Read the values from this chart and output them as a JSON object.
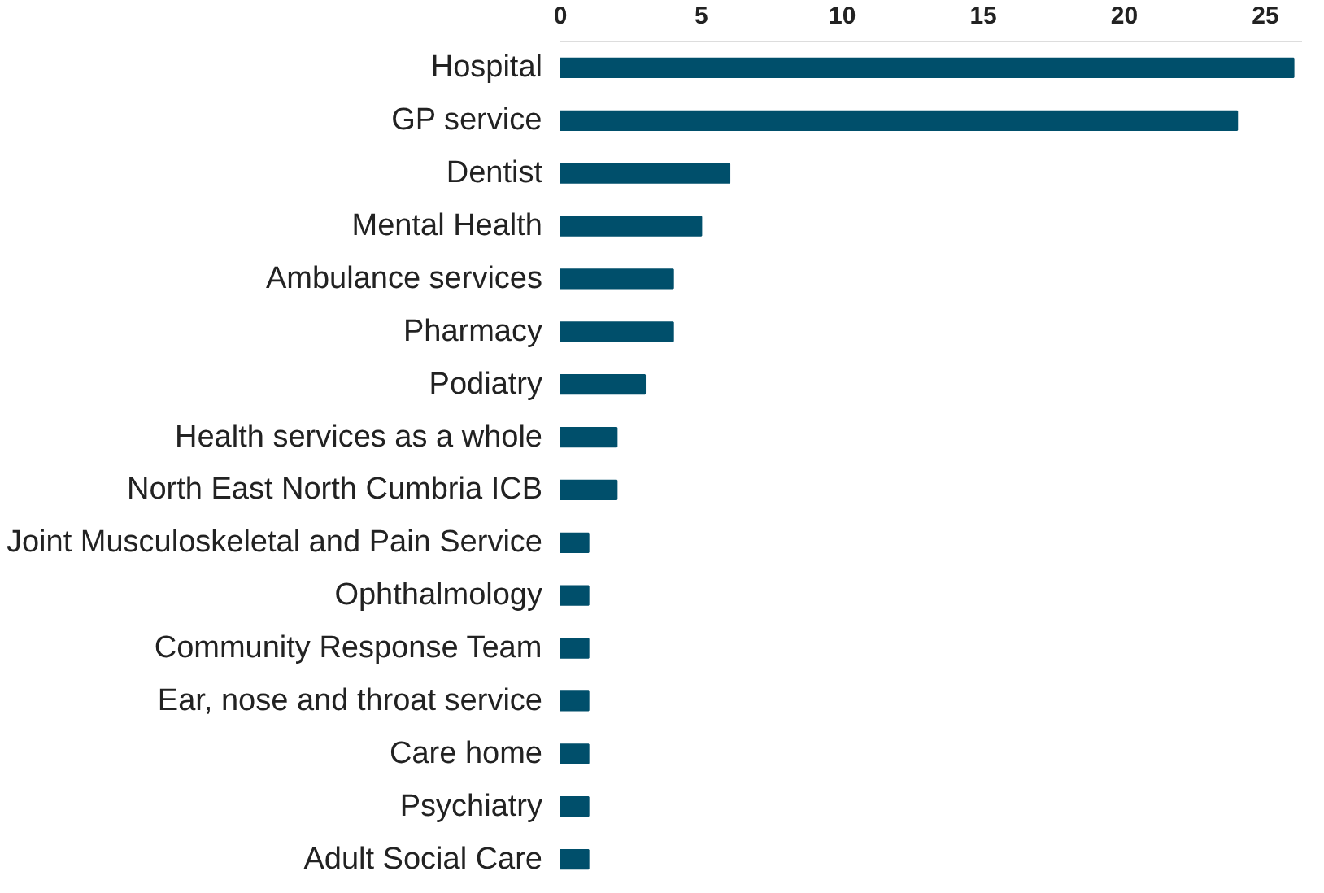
{
  "chart_data": {
    "type": "bar",
    "orientation": "horizontal",
    "categories": [
      "Hospital",
      "GP service",
      "Dentist",
      "Mental Health",
      "Ambulance services",
      "Pharmacy",
      "Podiatry",
      "Health services as a whole",
      "North East North Cumbria ICB",
      "Joint Musculoskeletal and Pain Service",
      "Ophthalmology",
      "Community Response Team",
      "Ear, nose and throat service",
      "Care home",
      "Psychiatry",
      "Adult Social Care"
    ],
    "values": [
      26,
      24,
      6,
      5,
      4,
      4,
      3,
      2,
      2,
      1,
      1,
      1,
      1,
      1,
      1,
      1
    ],
    "color": "#004f6b",
    "xlim": [
      0,
      26.3
    ],
    "xticks": [
      0,
      5,
      10,
      15,
      20,
      25
    ],
    "grid": false
  }
}
